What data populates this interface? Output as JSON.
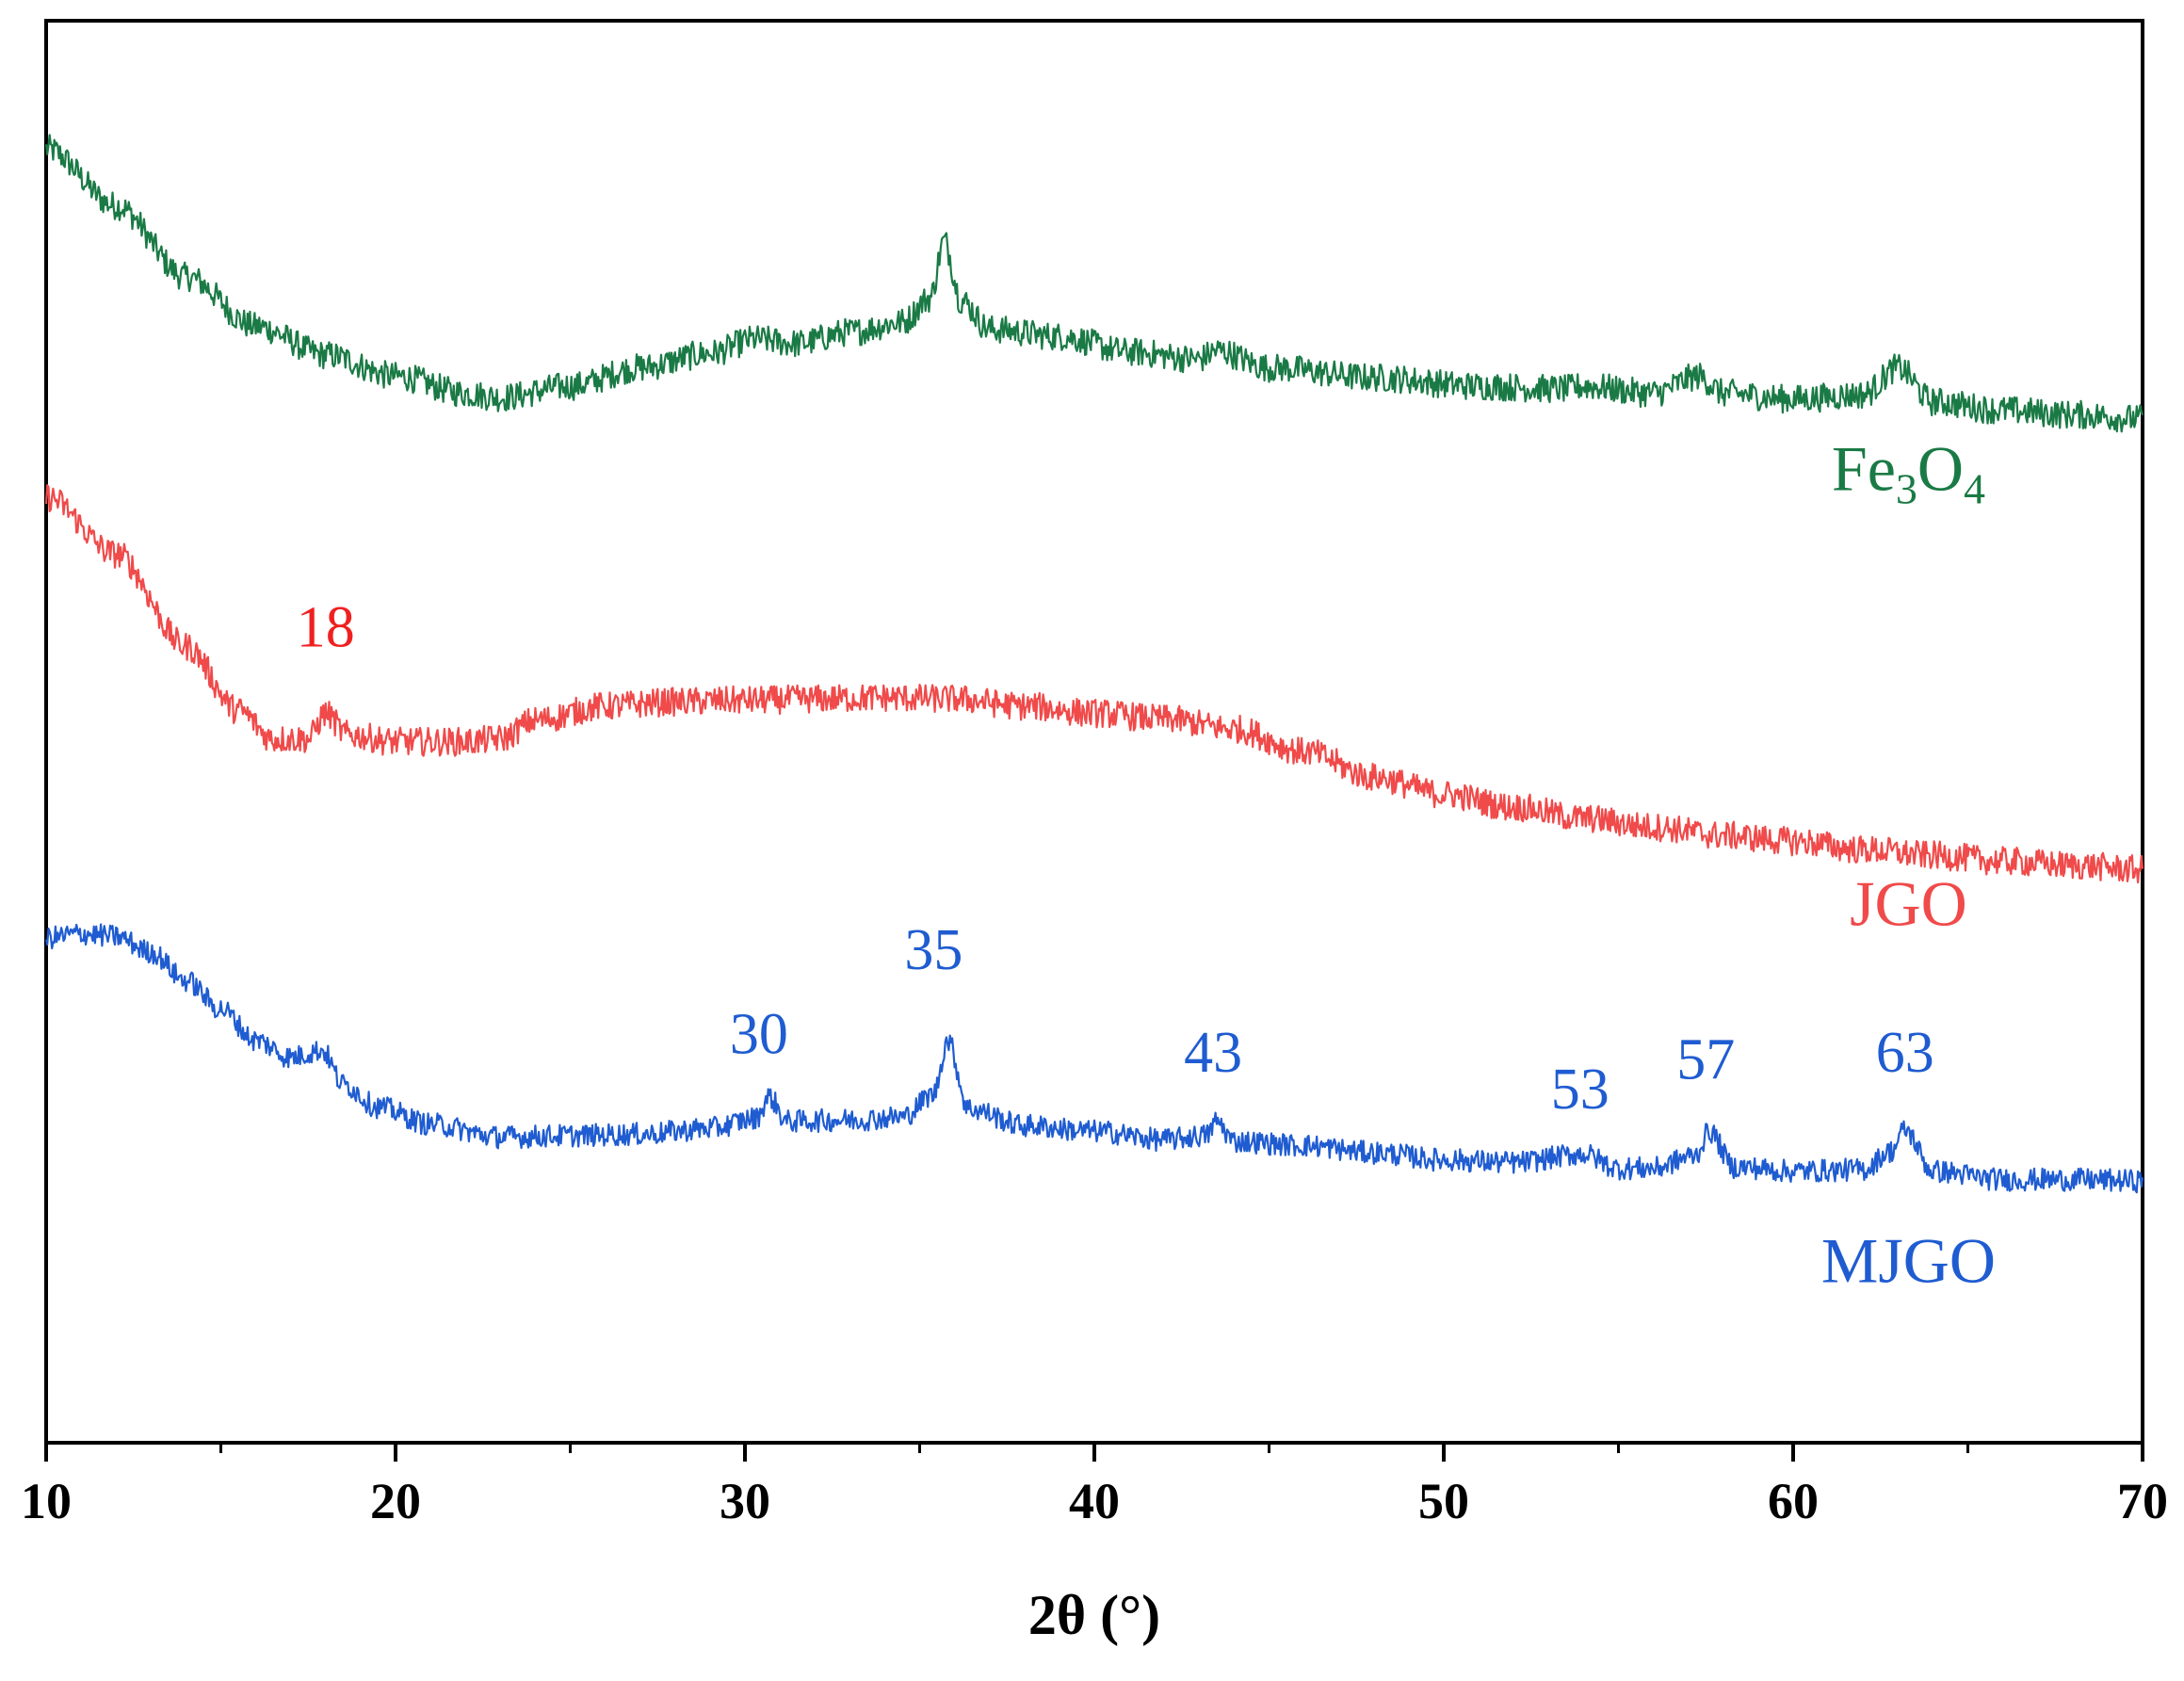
{
  "chart_data": {
    "type": "line",
    "title": "",
    "xlabel": "2θ (°)",
    "ylabel": "",
    "xlim": [
      10,
      70
    ],
    "ylim": [
      0,
      100
    ],
    "x_ticks": [
      "10",
      "20",
      "30",
      "40",
      "50",
      "60",
      "70"
    ],
    "x_minor_ticks": [
      15,
      25,
      35,
      45,
      55,
      65
    ],
    "grid": false,
    "legend": "inline labels at right",
    "series": [
      {
        "name": "Fe3O4",
        "label_main": "Fe",
        "label_sub1": "3",
        "label_mid": "O",
        "label_sub2": "4",
        "color": "#1a7a45",
        "noise": 1.0,
        "points": [
          [
            10,
            91
          ],
          [
            12,
            87
          ],
          [
            14,
            82
          ],
          [
            16,
            78.5
          ],
          [
            18,
            76.5
          ],
          [
            20,
            75
          ],
          [
            22,
            73.8
          ],
          [
            23,
            73.5
          ],
          [
            25,
            74.3
          ],
          [
            27,
            75.6
          ],
          [
            29,
            76.6
          ],
          [
            30.3,
            77.6
          ],
          [
            31.5,
            77.3
          ],
          [
            33,
            78.1
          ],
          [
            34.5,
            78.8
          ],
          [
            35.3,
            80.5
          ],
          [
            35.7,
            84.5
          ],
          [
            36.2,
            80.3
          ],
          [
            37,
            78.3
          ],
          [
            39,
            77.8
          ],
          [
            41,
            76.7
          ],
          [
            43,
            76.2
          ],
          [
            43.5,
            76.8
          ],
          [
            45,
            75.6
          ],
          [
            48,
            74.9
          ],
          [
            51,
            74.3
          ],
          [
            53.5,
            74.1
          ],
          [
            54,
            74.3
          ],
          [
            56,
            73.8
          ],
          [
            57.3,
            75
          ],
          [
            58,
            73.8
          ],
          [
            60,
            73.4
          ],
          [
            62,
            73.7
          ],
          [
            63,
            75.6
          ],
          [
            64,
            73.2
          ],
          [
            66,
            72.6
          ],
          [
            68,
            72.3
          ],
          [
            70,
            72
          ]
        ]
      },
      {
        "name": "JGO",
        "label": "JGO",
        "color": "#f04a4a",
        "noise": 1.0,
        "points": [
          [
            10,
            66.5
          ],
          [
            12,
            62.5
          ],
          [
            14,
            56
          ],
          [
            15.5,
            51.5
          ],
          [
            16.5,
            49.5
          ],
          [
            17.5,
            49.5
          ],
          [
            18,
            51.3
          ],
          [
            18.6,
            49.8
          ],
          [
            20,
            49.3
          ],
          [
            22,
            49.3
          ],
          [
            23,
            49.5
          ],
          [
            24,
            50.8
          ],
          [
            26,
            51.8
          ],
          [
            28,
            52.1
          ],
          [
            30,
            52.2
          ],
          [
            32,
            52.3
          ],
          [
            34,
            52.4
          ],
          [
            36,
            52.3
          ],
          [
            38,
            51.8
          ],
          [
            40,
            51.3
          ],
          [
            42,
            50.9
          ],
          [
            44,
            50.2
          ],
          [
            46,
            48.6
          ],
          [
            48,
            46.8
          ],
          [
            50,
            45.6
          ],
          [
            52,
            44.7
          ],
          [
            54,
            43.9
          ],
          [
            56,
            43.3
          ],
          [
            58,
            42.7
          ],
          [
            60,
            42.3
          ],
          [
            62,
            41.7
          ],
          [
            64,
            41.3
          ],
          [
            66,
            40.9
          ],
          [
            68,
            40.6
          ],
          [
            70,
            40.3
          ]
        ]
      },
      {
        "name": "MJGO",
        "label": "MJGO",
        "color": "#1f5cd1",
        "noise": 0.8,
        "points": [
          [
            10,
            35.5
          ],
          [
            11,
            35.8
          ],
          [
            12,
            35.6
          ],
          [
            13,
            34.5
          ],
          [
            14,
            32.5
          ],
          [
            15,
            30.5
          ],
          [
            16,
            28.3
          ],
          [
            17,
            27.1
          ],
          [
            17.9,
            27.6
          ],
          [
            18.5,
            25.2
          ],
          [
            19.5,
            23.6
          ],
          [
            21,
            22.4
          ],
          [
            23,
            21.5
          ],
          [
            25,
            21.6
          ],
          [
            27,
            21.7
          ],
          [
            29,
            22.1
          ],
          [
            30.3,
            22.8
          ],
          [
            30.7,
            24.3
          ],
          [
            31.2,
            22.6
          ],
          [
            33,
            22.7
          ],
          [
            34.5,
            22.9
          ],
          [
            35.4,
            24.5
          ],
          [
            35.8,
            28.3
          ],
          [
            36.4,
            23.5
          ],
          [
            38,
            22.3
          ],
          [
            40,
            21.9
          ],
          [
            42,
            21.3
          ],
          [
            43.2,
            21.6
          ],
          [
            43.5,
            22.6
          ],
          [
            44,
            21.2
          ],
          [
            46,
            20.9
          ],
          [
            48,
            20.4
          ],
          [
            50,
            19.9
          ],
          [
            52,
            19.7
          ],
          [
            54,
            20.3
          ],
          [
            55,
            19.3
          ],
          [
            56,
            19.3
          ],
          [
            57.2,
            20.2
          ],
          [
            57.6,
            21.9
          ],
          [
            58.3,
            19.4
          ],
          [
            60,
            19.1
          ],
          [
            62,
            19.2
          ],
          [
            62.8,
            20.5
          ],
          [
            63.2,
            22
          ],
          [
            64,
            19.1
          ],
          [
            66,
            18.5
          ],
          [
            68,
            18.5
          ],
          [
            70,
            18.4
          ]
        ]
      }
    ],
    "annotations": [
      {
        "text": "18",
        "x": 18,
        "series": "JGO",
        "y": 56,
        "color": "#f02020"
      },
      {
        "text": "30",
        "x": 30.4,
        "series": "MJGO",
        "y": 27.4,
        "color": "#1f5cd1"
      },
      {
        "text": "35",
        "x": 35.4,
        "series": "MJGO",
        "y": 33.3,
        "color": "#1f5cd1"
      },
      {
        "text": "43",
        "x": 43.4,
        "series": "MJGO",
        "y": 26.1,
        "color": "#1f5cd1"
      },
      {
        "text": "53",
        "x": 53.9,
        "series": "MJGO",
        "y": 23.5,
        "color": "#1f5cd1"
      },
      {
        "text": "57",
        "x": 57.5,
        "series": "MJGO",
        "y": 25.6,
        "color": "#1f5cd1"
      },
      {
        "text": "63",
        "x": 63.2,
        "series": "MJGO",
        "y": 26.1,
        "color": "#1f5cd1"
      }
    ],
    "series_labels": [
      {
        "series": "Fe3O4",
        "x": 63.3,
        "y": 67
      },
      {
        "series": "JGO",
        "x": 63.3,
        "y": 36.4
      },
      {
        "series": "MJGO",
        "x": 63.3,
        "y": 11.3
      }
    ]
  }
}
